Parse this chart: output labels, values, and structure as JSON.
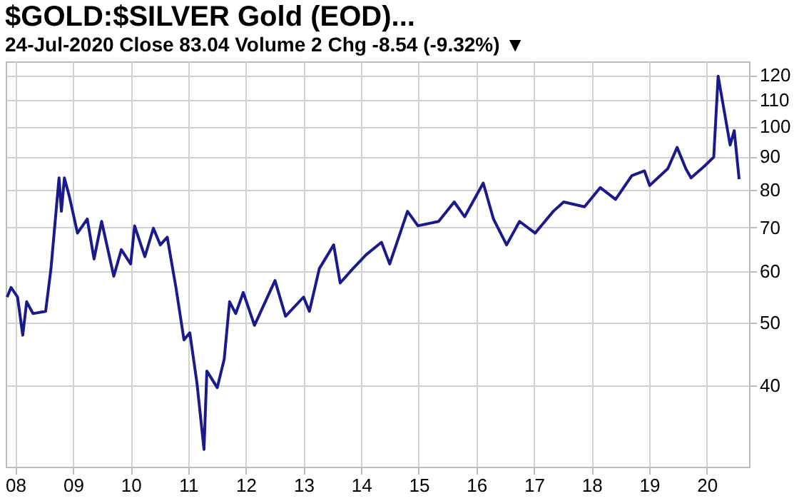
{
  "chart_data": {
    "type": "line",
    "title": "$GOLD:$SILVER Gold (EOD)...",
    "subtitle": "24-Jul-2020   Close 83.04  Volume 2  Chg -8.54 (-9.32%) ▼",
    "x": [
      "2007-11-10",
      "2007-12-05",
      "2008-01-15",
      "2008-02-17",
      "2008-03-13",
      "2008-04-22",
      "2008-07-11",
      "2008-08-14",
      "2008-10-04",
      "2008-10-19",
      "2008-11-07",
      "2008-12-09",
      "2009-01-29",
      "2009-04-01",
      "2009-05-14",
      "2009-07-01",
      "2009-09-16",
      "2009-11-03",
      "2010-01-01",
      "2010-01-26",
      "2010-04-01",
      "2010-05-25",
      "2010-07-08",
      "2010-08-21",
      "2010-10-15",
      "2010-12-05",
      "2011-01-11",
      "2011-02-25",
      "2011-04-11",
      "2011-04-29",
      "2011-07-04",
      "2011-08-17",
      "2011-09-20",
      "2011-10-29",
      "2011-12-16",
      "2012-02-25",
      "2012-07-04",
      "2012-09-09",
      "2013-01-01",
      "2013-02-07",
      "2013-04-11",
      "2013-07-11",
      "2013-08-21",
      "2013-11-10",
      "2014-02-03",
      "2014-05-10",
      "2014-07-01",
      "2014-10-22",
      "2014-12-27",
      "2015-05-07",
      "2015-08-14",
      "2015-10-19",
      "2016-02-14",
      "2016-04-19",
      "2016-07-11",
      "2016-10-01",
      "2017-01-08",
      "2017-05-03",
      "2017-07-08",
      "2017-11-17",
      "2018-02-25",
      "2018-06-02",
      "2018-09-13",
      "2018-12-02",
      "2019-01-04",
      "2019-04-29",
      "2019-06-27",
      "2019-08-21",
      "2019-09-23",
      "2019-12-16",
      "2020-02-14",
      "2020-03-13",
      "2020-04-08",
      "2020-05-28",
      "2020-06-23",
      "2020-07-24"
    ],
    "series": [
      {
        "color": "#1a1a8c",
        "values": [
          54.7,
          56.6,
          54.7,
          47.8,
          53.8,
          51.6,
          52.0,
          60.5,
          83.4,
          74.1,
          83.4,
          78.0,
          68.6,
          72.1,
          62.6,
          71.5,
          58.9,
          64.7,
          61.5,
          70.4,
          63.1,
          69.8,
          65.8,
          67.6,
          56.6,
          47.0,
          48.2,
          40.4,
          31.9,
          42.1,
          39.7,
          43.9,
          53.8,
          51.6,
          55.6,
          49.5,
          58.0,
          51.1,
          54.7,
          52.0,
          60.5,
          65.8,
          57.5,
          60.5,
          63.6,
          66.4,
          61.5,
          74.1,
          70.4,
          71.5,
          76.6,
          72.7,
          81.9,
          72.1,
          65.8,
          71.5,
          68.6,
          74.1,
          76.6,
          75.3,
          80.6,
          77.3,
          84.1,
          85.5,
          81.2,
          86.2,
          92.9,
          86.2,
          83.4,
          86.9,
          89.8,
          119.6,
          110.0,
          93.7,
          98.6,
          83.04
        ]
      }
    ],
    "log": "y",
    "ylim": [
      30,
      126
    ],
    "yticks": [
      40,
      50,
      60,
      70,
      80,
      90,
      100,
      110,
      120
    ],
    "xlim": [
      "2007-11-01",
      "2020-09-25"
    ],
    "xticks": [
      {
        "value": "2008",
        "label": "08"
      },
      {
        "value": "2009",
        "label": "09"
      },
      {
        "value": "2010",
        "label": "10"
      },
      {
        "value": "2011",
        "label": "11"
      },
      {
        "value": "2012",
        "label": "12"
      },
      {
        "value": "2013",
        "label": "13"
      },
      {
        "value": "2014",
        "label": "14"
      },
      {
        "value": "2015",
        "label": "15"
      },
      {
        "value": "2016",
        "label": "16"
      },
      {
        "value": "2017",
        "label": "17"
      },
      {
        "value": "2018",
        "label": "18"
      },
      {
        "value": "2019",
        "label": "19"
      },
      {
        "value": "2020",
        "label": "20"
      }
    ],
    "grid": true,
    "marker": "none",
    "line_style": "solid"
  }
}
